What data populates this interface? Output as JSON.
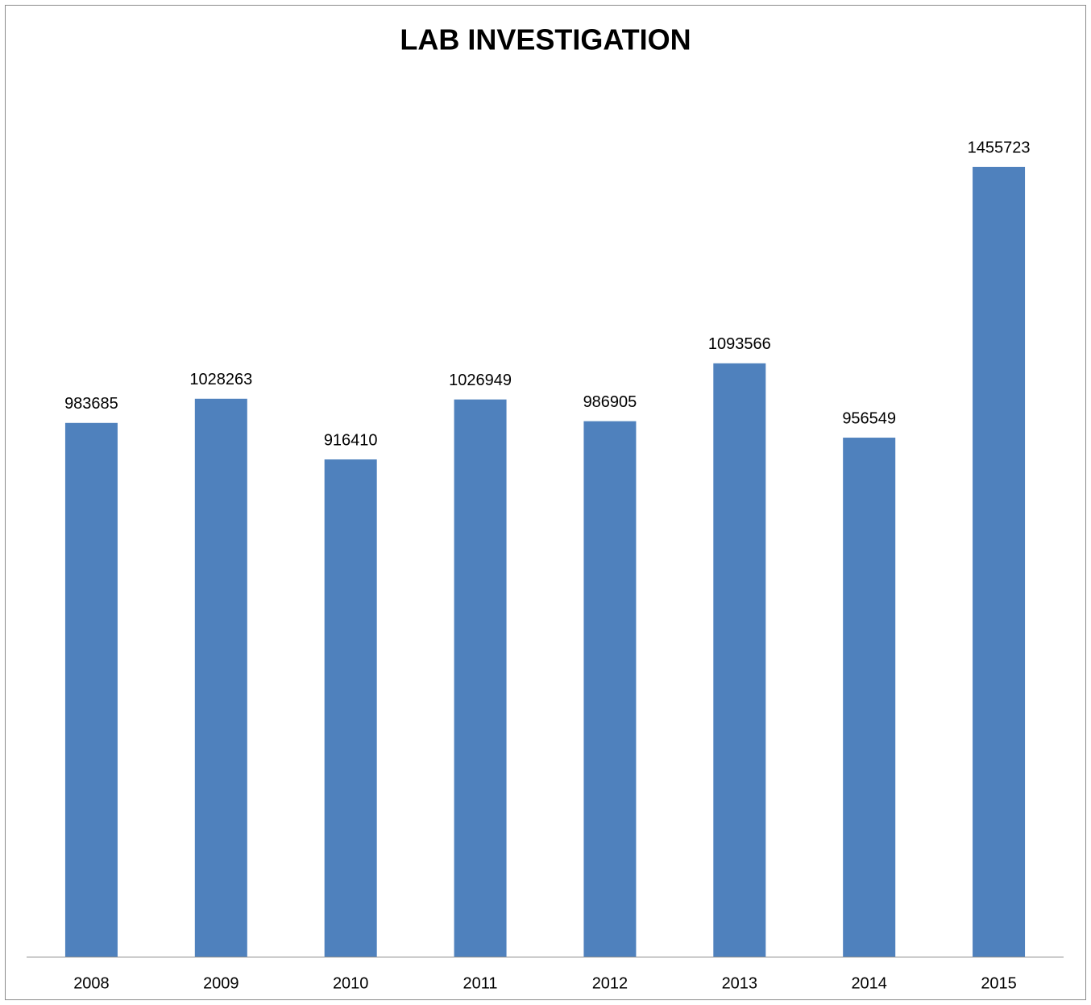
{
  "chart_data": {
    "type": "bar",
    "title": "LAB INVESTIGATION",
    "categories": [
      "2008",
      "2009",
      "2010",
      "2011",
      "2012",
      "2013",
      "2014",
      "2015"
    ],
    "values": [
      983685,
      1028263,
      916410,
      1026949,
      986905,
      1093566,
      956549,
      1455723
    ],
    "color": "#4f81bd",
    "grid": false
  }
}
